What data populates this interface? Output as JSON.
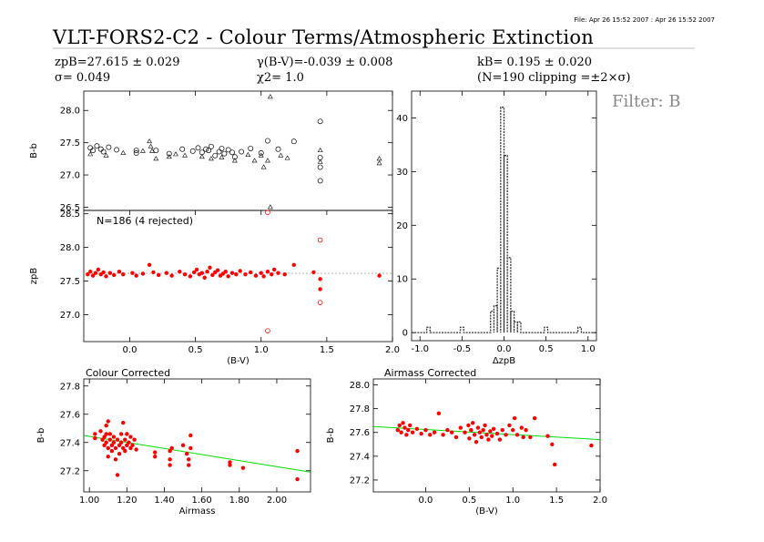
{
  "header": {
    "file_stamp": "File: Apr 26 15:52 2007 : Apr 26 15:52 2007",
    "title": "VLT-FORS2-C2 - Colour Terms/Atmospheric Extinction",
    "zp_text": "zpB=27.615 ± 0.029",
    "sigma_text": "σ= 0.049",
    "gamma_text": "γ(B-V)=-0.039 ± 0.008",
    "chi2_text": "χ2= 1.0",
    "k_text": "kB= 0.195 ± 0.020",
    "clip_text": "(N=190 clipping =±2×σ)",
    "filter": "Filter: B"
  },
  "colors": {
    "accepted": "#ff0000",
    "rejected": "#ff0000",
    "raw": "#000000",
    "fit_dashed": "#aaaaaa",
    "fit_green": "#00dd00"
  },
  "chart_data": [
    {
      "id": "raw",
      "type": "scatter",
      "title": "",
      "xlabel": "",
      "ylabel": "B-b",
      "xlim": [
        -0.35,
        2.0
      ],
      "ylim": [
        26.45,
        28.3
      ],
      "yticks": [
        26.5,
        27.0,
        27.5,
        28.0
      ],
      "ytick_labels": [
        "26.5",
        "27.0",
        "27.5",
        "28.0"
      ],
      "series": [
        {
          "marker": "circle",
          "points": [
            [
              -0.3,
              27.42
            ],
            [
              -0.28,
              27.38
            ],
            [
              -0.25,
              27.45
            ],
            [
              -0.22,
              27.4
            ],
            [
              -0.2,
              27.36
            ],
            [
              -0.16,
              27.43
            ],
            [
              -0.1,
              27.39
            ],
            [
              0.05,
              27.38
            ],
            [
              0.05,
              27.34
            ],
            [
              0.2,
              27.38
            ],
            [
              0.3,
              27.33
            ],
            [
              0.4,
              27.4
            ],
            [
              0.48,
              27.37
            ],
            [
              0.52,
              27.42
            ],
            [
              0.55,
              27.35
            ],
            [
              0.58,
              27.4
            ],
            [
              0.6,
              27.38
            ],
            [
              0.62,
              27.44
            ],
            [
              0.65,
              27.3
            ],
            [
              0.68,
              27.36
            ],
            [
              0.7,
              27.41
            ],
            [
              0.72,
              27.33
            ],
            [
              0.75,
              27.39
            ],
            [
              0.78,
              27.35
            ],
            [
              0.8,
              27.28
            ],
            [
              0.85,
              27.36
            ],
            [
              0.92,
              27.41
            ],
            [
              1.0,
              27.34
            ],
            [
              1.05,
              27.53
            ],
            [
              1.13,
              27.4
            ],
            [
              1.25,
              27.52
            ],
            [
              1.45,
              27.83
            ],
            [
              1.45,
              27.27
            ],
            [
              1.45,
              27.12
            ],
            [
              1.45,
              26.91
            ]
          ]
        },
        {
          "marker": "triangle",
          "points": [
            [
              -0.3,
              27.32
            ],
            [
              -0.18,
              27.3
            ],
            [
              -0.05,
              27.34
            ],
            [
              0.1,
              27.37
            ],
            [
              0.15,
              27.52
            ],
            [
              0.16,
              27.44
            ],
            [
              0.17,
              27.37
            ],
            [
              0.2,
              27.25
            ],
            [
              0.3,
              27.28
            ],
            [
              0.35,
              27.32
            ],
            [
              0.42,
              27.3
            ],
            [
              0.55,
              27.28
            ],
            [
              0.62,
              27.25
            ],
            [
              0.7,
              27.27
            ],
            [
              0.8,
              27.22
            ],
            [
              0.9,
              27.31
            ],
            [
              0.95,
              27.22
            ],
            [
              1.0,
              27.3
            ],
            [
              1.02,
              27.12
            ],
            [
              1.05,
              27.22
            ],
            [
              1.07,
              28.21
            ],
            [
              1.07,
              26.5
            ],
            [
              1.15,
              27.3
            ],
            [
              1.2,
              27.26
            ],
            [
              1.45,
              27.38
            ],
            [
              1.45,
              27.2
            ],
            [
              1.9,
              27.25
            ],
            [
              1.9,
              27.18
            ]
          ]
        }
      ]
    },
    {
      "id": "fit",
      "type": "scatter",
      "title": "N=186 (4 rejected)",
      "xlabel": "(B-V)",
      "ylabel": "zpB",
      "xlim": [
        -0.35,
        2.0
      ],
      "ylim": [
        26.6,
        28.55
      ],
      "xticks": [
        0.0,
        0.5,
        1.0,
        1.5,
        2.0
      ],
      "xtick_labels": [
        "0.0",
        "0.5",
        "1.0",
        "1.5",
        "2.0"
      ],
      "yticks": [
        27.0,
        27.5,
        28.0,
        28.5
      ],
      "ytick_labels": [
        "27.0",
        "27.5",
        "28.0",
        "28.5"
      ],
      "fit_line": {
        "x": [
          -0.35,
          2.0
        ],
        "y": [
          27.615,
          27.615
        ]
      },
      "series": [
        {
          "name": "accepted",
          "marker": "dot",
          "points": [
            [
              -0.32,
              27.6
            ],
            [
              -0.3,
              27.64
            ],
            [
              -0.28,
              27.58
            ],
            [
              -0.26,
              27.62
            ],
            [
              -0.24,
              27.67
            ],
            [
              -0.22,
              27.6
            ],
            [
              -0.2,
              27.63
            ],
            [
              -0.18,
              27.57
            ],
            [
              -0.15,
              27.62
            ],
            [
              -0.12,
              27.59
            ],
            [
              -0.08,
              27.64
            ],
            [
              -0.05,
              27.6
            ],
            [
              0.02,
              27.62
            ],
            [
              0.05,
              27.58
            ],
            [
              0.1,
              27.61
            ],
            [
              0.15,
              27.74
            ],
            [
              0.18,
              27.63
            ],
            [
              0.22,
              27.59
            ],
            [
              0.28,
              27.62
            ],
            [
              0.32,
              27.58
            ],
            [
              0.38,
              27.64
            ],
            [
              0.42,
              27.6
            ],
            [
              0.46,
              27.57
            ],
            [
              0.49,
              27.63
            ],
            [
              0.51,
              27.67
            ],
            [
              0.53,
              27.6
            ],
            [
              0.55,
              27.62
            ],
            [
              0.57,
              27.55
            ],
            [
              0.59,
              27.64
            ],
            [
              0.61,
              27.7
            ],
            [
              0.63,
              27.59
            ],
            [
              0.65,
              27.63
            ],
            [
              0.67,
              27.66
            ],
            [
              0.69,
              27.58
            ],
            [
              0.71,
              27.61
            ],
            [
              0.73,
              27.64
            ],
            [
              0.75,
              27.57
            ],
            [
              0.78,
              27.62
            ],
            [
              0.81,
              27.6
            ],
            [
              0.84,
              27.65
            ],
            [
              0.88,
              27.6
            ],
            [
              0.92,
              27.63
            ],
            [
              0.96,
              27.58
            ],
            [
              1.0,
              27.62
            ],
            [
              1.02,
              27.57
            ],
            [
              1.05,
              27.64
            ],
            [
              1.08,
              27.6
            ],
            [
              1.1,
              27.67
            ],
            [
              1.13,
              27.62
            ],
            [
              1.18,
              27.6
            ],
            [
              1.25,
              27.74
            ],
            [
              1.4,
              27.63
            ],
            [
              1.45,
              27.53
            ],
            [
              1.45,
              27.38
            ],
            [
              1.9,
              27.58
            ]
          ]
        },
        {
          "name": "rejected",
          "marker": "open-circle",
          "points": [
            [
              1.05,
              28.52
            ],
            [
              1.45,
              28.11
            ],
            [
              1.45,
              27.18
            ],
            [
              1.05,
              26.76
            ]
          ]
        }
      ]
    },
    {
      "id": "hist",
      "type": "histogram",
      "title": "",
      "xlabel": "ΔzpB",
      "ylabel": "",
      "xlim": [
        -1.1,
        1.1
      ],
      "ylim": [
        -1.5,
        45
      ],
      "xticks": [
        -1.0,
        -0.5,
        0.0,
        0.5,
        1.0
      ],
      "xtick_labels": [
        "-1.0",
        "-0.5",
        "0.0",
        "0.5",
        "1.0"
      ],
      "yticks": [
        0,
        10,
        20,
        30,
        40
      ],
      "ytick_labels": [
        "0",
        "10",
        "20",
        "30",
        "40"
      ],
      "bins": [
        [
          -0.92,
          -0.88,
          1
        ],
        [
          -0.52,
          -0.48,
          1
        ],
        [
          -0.16,
          -0.12,
          4
        ],
        [
          -0.12,
          -0.08,
          5
        ],
        [
          -0.08,
          -0.04,
          12
        ],
        [
          -0.04,
          0.0,
          42
        ],
        [
          0.0,
          0.04,
          33
        ],
        [
          0.04,
          0.08,
          14
        ],
        [
          0.08,
          0.12,
          4
        ],
        [
          0.12,
          0.16,
          2
        ],
        [
          0.16,
          0.2,
          2
        ],
        [
          0.48,
          0.52,
          1
        ],
        [
          0.88,
          0.92,
          1
        ]
      ]
    },
    {
      "id": "colour_corrected",
      "type": "scatter",
      "title": "Colour Corrected",
      "xlabel": "Airmass",
      "ylabel": "B-b",
      "xlim": [
        0.97,
        2.18
      ],
      "ylim": [
        27.05,
        27.85
      ],
      "xticks": [
        1.0,
        1.2,
        1.4,
        1.6,
        1.8,
        2.0
      ],
      "xtick_labels": [
        "1.00",
        "1.20",
        "1.40",
        "1.60",
        "1.80",
        "2.00"
      ],
      "yticks": [
        27.0,
        27.2,
        27.4,
        27.6,
        27.8
      ],
      "ytick_labels": [
        "27.0",
        "27.2",
        "27.4",
        "27.6",
        "27.8"
      ],
      "fit_line": {
        "x": [
          0.97,
          2.18
        ],
        "y": [
          27.45,
          27.19
        ]
      },
      "points": [
        [
          1.03,
          27.46
        ],
        [
          1.03,
          27.43
        ],
        [
          1.06,
          27.48
        ],
        [
          1.07,
          27.42
        ],
        [
          1.08,
          27.44
        ],
        [
          1.08,
          27.38
        ],
        [
          1.09,
          27.52
        ],
        [
          1.09,
          27.46
        ],
        [
          1.09,
          27.4
        ],
        [
          1.1,
          27.36
        ],
        [
          1.1,
          27.3
        ],
        [
          1.1,
          27.55
        ],
        [
          1.11,
          27.42
        ],
        [
          1.11,
          27.46
        ],
        [
          1.12,
          27.38
        ],
        [
          1.12,
          27.34
        ],
        [
          1.13,
          27.44
        ],
        [
          1.13,
          27.4
        ],
        [
          1.14,
          27.36
        ],
        [
          1.14,
          27.28
        ],
        [
          1.15,
          27.42
        ],
        [
          1.15,
          27.17
        ],
        [
          1.16,
          27.38
        ],
        [
          1.16,
          27.32
        ],
        [
          1.17,
          27.46
        ],
        [
          1.17,
          27.4
        ],
        [
          1.18,
          27.54
        ],
        [
          1.18,
          27.36
        ],
        [
          1.19,
          27.42
        ],
        [
          1.19,
          27.34
        ],
        [
          1.2,
          27.38
        ],
        [
          1.2,
          27.46
        ],
        [
          1.21,
          27.4
        ],
        [
          1.22,
          27.44
        ],
        [
          1.22,
          27.36
        ],
        [
          1.23,
          27.38
        ],
        [
          1.24,
          27.42
        ],
        [
          1.25,
          27.35
        ],
        [
          1.35,
          27.3
        ],
        [
          1.35,
          27.33
        ],
        [
          1.43,
          27.34
        ],
        [
          1.43,
          27.28
        ],
        [
          1.43,
          27.24
        ],
        [
          1.44,
          27.36
        ],
        [
          1.5,
          27.38
        ],
        [
          1.52,
          27.32
        ],
        [
          1.53,
          27.28
        ],
        [
          1.53,
          27.24
        ],
        [
          1.54,
          27.45
        ],
        [
          1.54,
          27.36
        ],
        [
          1.75,
          27.26
        ],
        [
          1.75,
          27.24
        ],
        [
          1.82,
          27.22
        ],
        [
          2.11,
          27.34
        ],
        [
          2.11,
          27.14
        ]
      ]
    },
    {
      "id": "airmass_corrected",
      "type": "scatter",
      "title": "Airmass Corrected",
      "xlabel": "(B-V)",
      "ylabel": "B-b",
      "xlim": [
        -0.6,
        2.0
      ],
      "ylim": [
        27.1,
        28.05
      ],
      "xticks": [
        0.0,
        0.5,
        1.0,
        1.5,
        2.0
      ],
      "xtick_labels": [
        "0.0",
        "0.5",
        "1.0",
        "1.5",
        "2.0"
      ],
      "yticks": [
        27.2,
        27.4,
        27.6,
        27.8,
        28.0
      ],
      "ytick_labels": [
        "27.2",
        "27.4",
        "27.6",
        "27.8",
        "28.0"
      ],
      "fit_line": {
        "x": [
          -0.6,
          2.0
        ],
        "y": [
          27.65,
          27.54
        ]
      },
      "points": [
        [
          -0.32,
          27.62
        ],
        [
          -0.3,
          27.66
        ],
        [
          -0.28,
          27.6
        ],
        [
          -0.26,
          27.68
        ],
        [
          -0.24,
          27.64
        ],
        [
          -0.22,
          27.58
        ],
        [
          -0.2,
          27.62
        ],
        [
          -0.18,
          27.66
        ],
        [
          -0.15,
          27.6
        ],
        [
          -0.1,
          27.63
        ],
        [
          -0.05,
          27.59
        ],
        [
          0.0,
          27.62
        ],
        [
          0.05,
          27.58
        ],
        [
          0.1,
          27.6
        ],
        [
          0.15,
          27.76
        ],
        [
          0.2,
          27.58
        ],
        [
          0.25,
          27.62
        ],
        [
          0.3,
          27.6
        ],
        [
          0.35,
          27.56
        ],
        [
          0.4,
          27.64
        ],
        [
          0.45,
          27.6
        ],
        [
          0.49,
          27.66
        ],
        [
          0.5,
          27.55
        ],
        [
          0.52,
          27.62
        ],
        [
          0.54,
          27.68
        ],
        [
          0.56,
          27.58
        ],
        [
          0.58,
          27.52
        ],
        [
          0.6,
          27.64
        ],
        [
          0.62,
          27.6
        ],
        [
          0.64,
          27.56
        ],
        [
          0.66,
          27.62
        ],
        [
          0.68,
          27.66
        ],
        [
          0.7,
          27.58
        ],
        [
          0.72,
          27.54
        ],
        [
          0.74,
          27.61
        ],
        [
          0.76,
          27.57
        ],
        [
          0.78,
          27.63
        ],
        [
          0.82,
          27.59
        ],
        [
          0.85,
          27.54
        ],
        [
          0.88,
          27.62
        ],
        [
          0.92,
          27.58
        ],
        [
          0.96,
          27.66
        ],
        [
          1.0,
          27.62
        ],
        [
          1.02,
          27.72
        ],
        [
          1.05,
          27.58
        ],
        [
          1.1,
          27.64
        ],
        [
          1.12,
          27.56
        ],
        [
          1.15,
          27.62
        ],
        [
          1.2,
          27.56
        ],
        [
          1.25,
          27.72
        ],
        [
          1.4,
          27.57
        ],
        [
          1.45,
          27.5
        ],
        [
          1.48,
          27.33
        ],
        [
          1.9,
          27.49
        ]
      ]
    }
  ]
}
